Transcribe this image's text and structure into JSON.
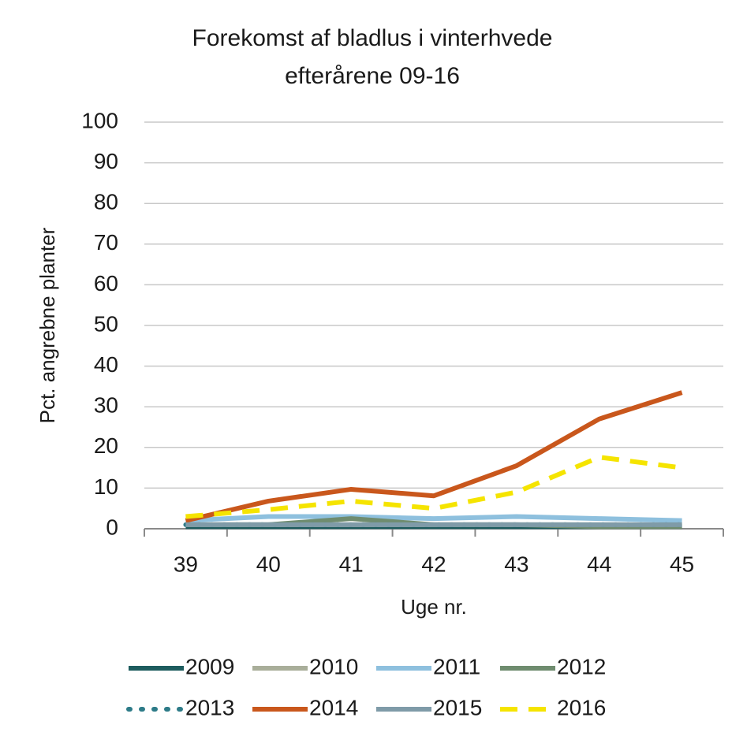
{
  "chart_data": {
    "type": "line",
    "title": [
      "Forekomst af bladlus i vinterhvede",
      "efterårene 09-16"
    ],
    "x_label": "Uge nr.",
    "y_label": "Pct. angrebne planter",
    "categories": [
      "39",
      "40",
      "41",
      "42",
      "43",
      "44",
      "45"
    ],
    "series": [
      {
        "name": "2009",
        "color": "#1d5c5e",
        "dash": "solid",
        "values": [
          0.5,
          0.5,
          0.5,
          0.5,
          0.5,
          0.5,
          0.5
        ]
      },
      {
        "name": "2010",
        "color": "#a9ae9a",
        "dash": "solid",
        "values": [
          1,
          1,
          1,
          1,
          1,
          1,
          1
        ]
      },
      {
        "name": "2011",
        "color": "#8ec0de",
        "dash": "solid",
        "values": [
          2,
          3,
          3,
          2.5,
          3,
          2.5,
          2
        ]
      },
      {
        "name": "2012",
        "color": "#6f8c6f",
        "dash": "solid",
        "values": [
          1,
          1,
          2.5,
          1,
          1,
          0.5,
          0.5
        ]
      },
      {
        "name": "2013",
        "color": "#2d7b88",
        "dash": "dotted",
        "values": [
          1,
          1,
          1,
          1,
          1,
          1,
          1
        ]
      },
      {
        "name": "2014",
        "color": "#c9571c",
        "dash": "solid",
        "values": [
          2,
          6.8,
          9.7,
          8.1,
          15.5,
          27,
          33.5
        ]
      },
      {
        "name": "2015",
        "color": "#7f9ba8",
        "dash": "solid",
        "values": [
          1,
          1,
          1,
          1,
          1,
          1,
          1
        ]
      },
      {
        "name": "2016",
        "color": "#f5e400",
        "dash": "dashed",
        "values": [
          3,
          4.7,
          6.8,
          5,
          9,
          17.6,
          15
        ]
      }
    ],
    "ylim": [
      0,
      100
    ],
    "yticks": [
      0,
      10,
      20,
      30,
      40,
      50,
      60,
      70,
      80,
      90,
      100
    ],
    "grid": true,
    "legend": "bottom"
  }
}
